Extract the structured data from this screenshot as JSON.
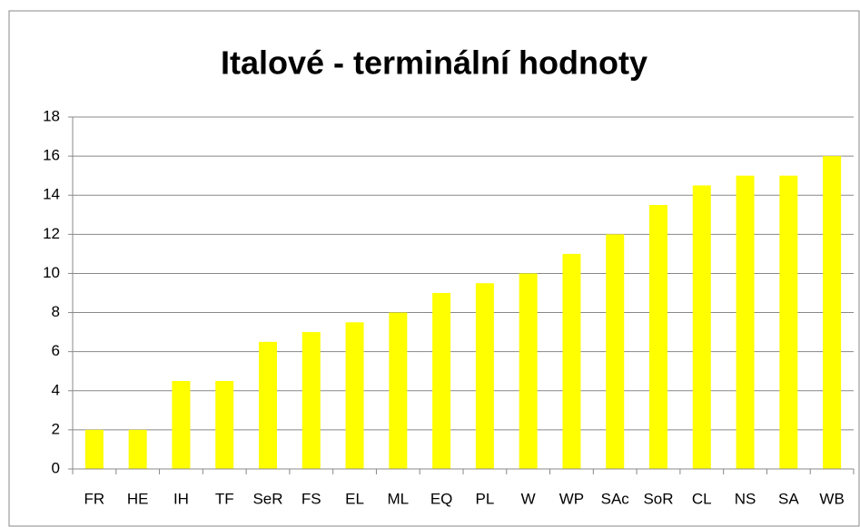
{
  "chart_data": {
    "type": "bar",
    "title": "Italové - terminální hodnoty",
    "categories": [
      "FR",
      "HE",
      "IH",
      "TF",
      "SeR",
      "FS",
      "EL",
      "ML",
      "EQ",
      "PL",
      "W",
      "WP",
      "SAc",
      "SoR",
      "CL",
      "NS",
      "SA",
      "WB"
    ],
    "values": [
      2,
      2,
      4.5,
      4.5,
      6.5,
      7,
      7.5,
      8,
      9,
      9.5,
      10,
      11,
      12,
      13.5,
      14.5,
      15,
      15,
      16
    ],
    "color": "#ffff00",
    "ylim": [
      0,
      18
    ],
    "yticks": [
      0,
      2,
      4,
      6,
      8,
      10,
      12,
      14,
      16,
      18
    ],
    "grid": true
  }
}
